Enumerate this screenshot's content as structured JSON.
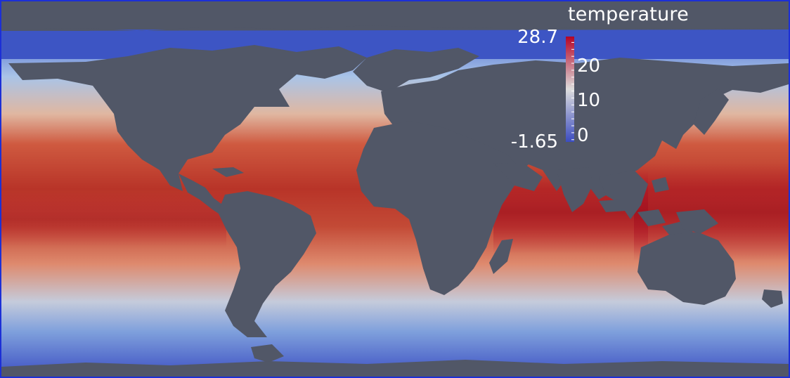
{
  "legend": {
    "title": "temperature",
    "range_max": "28.7",
    "range_min": "-1.65",
    "ticks": [
      {
        "value": 20,
        "label": "20"
      },
      {
        "value": 10,
        "label": "10"
      },
      {
        "value": 0,
        "label": "0"
      }
    ],
    "min_value": -1.65,
    "max_value": 28.7
  },
  "colors": {
    "land": "#515767",
    "cold": "#3b4cc0",
    "mid": "#dddddd",
    "warm": "#b40426",
    "frame": "#1c2fd6"
  },
  "map": {
    "variable": "sea surface temperature",
    "colormap": "cool-to-warm"
  }
}
